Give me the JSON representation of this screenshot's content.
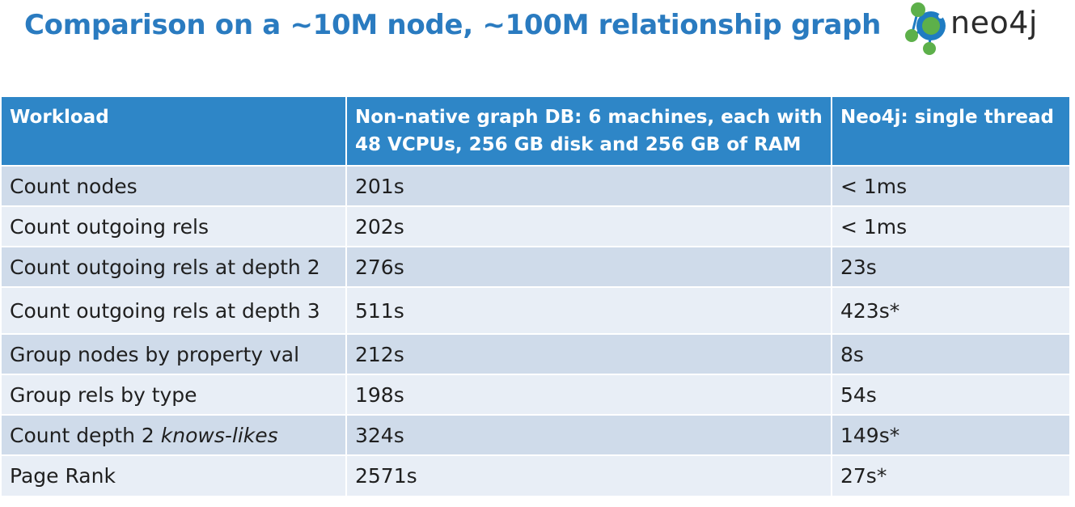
{
  "title": "Comparison on a ~10M node, ~100M relationship graph",
  "logo": {
    "text": "neo4j",
    "icon": "neo4j-logo-icon",
    "colors": {
      "green": "#5db04a",
      "blue": "#1f7cc2"
    }
  },
  "colors": {
    "title": "#2a7bc0",
    "header_bg": "#2e86c7",
    "row_dark": "#cfdbea",
    "row_light": "#e8eef6"
  },
  "table": {
    "headers": [
      "Workload",
      "Non-native graph DB: 6 machines, each with 48 VCPUs, 256 GB disk and 256 GB of RAM",
      "Neo4j: single thread"
    ],
    "rows": [
      {
        "workload": "Count nodes",
        "workload_em": "",
        "non_native": "201s",
        "neo4j": "< 1ms"
      },
      {
        "workload": "Count outgoing rels",
        "workload_em": "",
        "non_native": "202s",
        "neo4j": "< 1ms"
      },
      {
        "workload": "Count outgoing rels at depth 2",
        "workload_em": "",
        "non_native": "276s",
        "neo4j": "23s"
      },
      {
        "workload": "Count outgoing rels at depth 3",
        "workload_em": "",
        "non_native": "511s",
        "neo4j": "423s*"
      },
      {
        "workload": "Group nodes by property val",
        "workload_em": "",
        "non_native": "212s",
        "neo4j": "8s"
      },
      {
        "workload": "Group rels by type",
        "workload_em": "",
        "non_native": "198s",
        "neo4j": "54s"
      },
      {
        "workload": "Count depth 2 ",
        "workload_em": "knows-likes",
        "non_native": "324s",
        "neo4j": "149s*"
      },
      {
        "workload": "Page Rank",
        "workload_em": "",
        "non_native": "2571s",
        "neo4j": "27s*"
      }
    ]
  }
}
